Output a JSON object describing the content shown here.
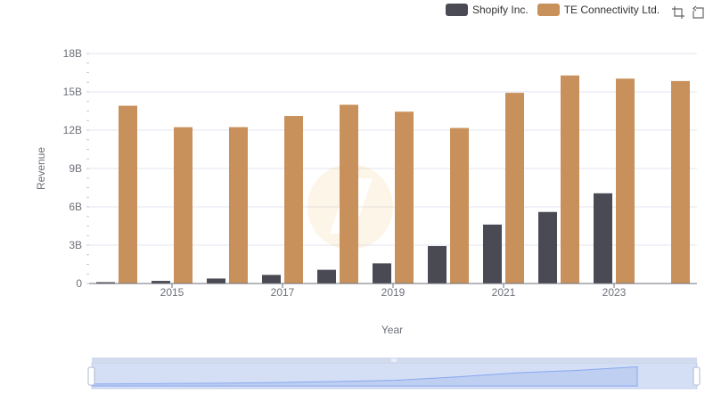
{
  "legend": {
    "items": [
      {
        "name": "Shopify Inc.",
        "color": "#4a4a55"
      },
      {
        "name": "TE Connectivity Ltd.",
        "color": "#c8915c"
      }
    ]
  },
  "toolbox": {
    "icons": [
      "zoom-icon",
      "restore-icon"
    ]
  },
  "chart_data": {
    "type": "bar",
    "xlabel": "Year",
    "ylabel": "Revenue",
    "categories": [
      "2014",
      "2015",
      "2016",
      "2017",
      "2018",
      "2019",
      "2020",
      "2021",
      "2022",
      "2023",
      "2024"
    ],
    "x_tick_labels": [
      "2015",
      "2017",
      "2019",
      "2021",
      "2023"
    ],
    "y_tick_labels": [
      "0",
      "3B",
      "6B",
      "9B",
      "12B",
      "15B",
      "18B"
    ],
    "ylim": [
      0,
      18000000000
    ],
    "grid": true,
    "legend_position": "top-right",
    "series": [
      {
        "name": "Shopify Inc.",
        "color": "#4a4a55",
        "values": [
          105000000,
          205000000,
          389000000,
          673000000,
          1073000000,
          1578000000,
          2929000000,
          4612000000,
          5600000000,
          7060000000,
          null
        ]
      },
      {
        "name": "TE Connectivity Ltd.",
        "color": "#c8915c",
        "values": [
          13912000000,
          12233000000,
          12238000000,
          13113000000,
          13988000000,
          13448000000,
          12172000000,
          14923000000,
          16281000000,
          16034000000,
          15845000000
        ]
      }
    ],
    "dataZoom": {
      "start": 0,
      "end": 100
    }
  }
}
